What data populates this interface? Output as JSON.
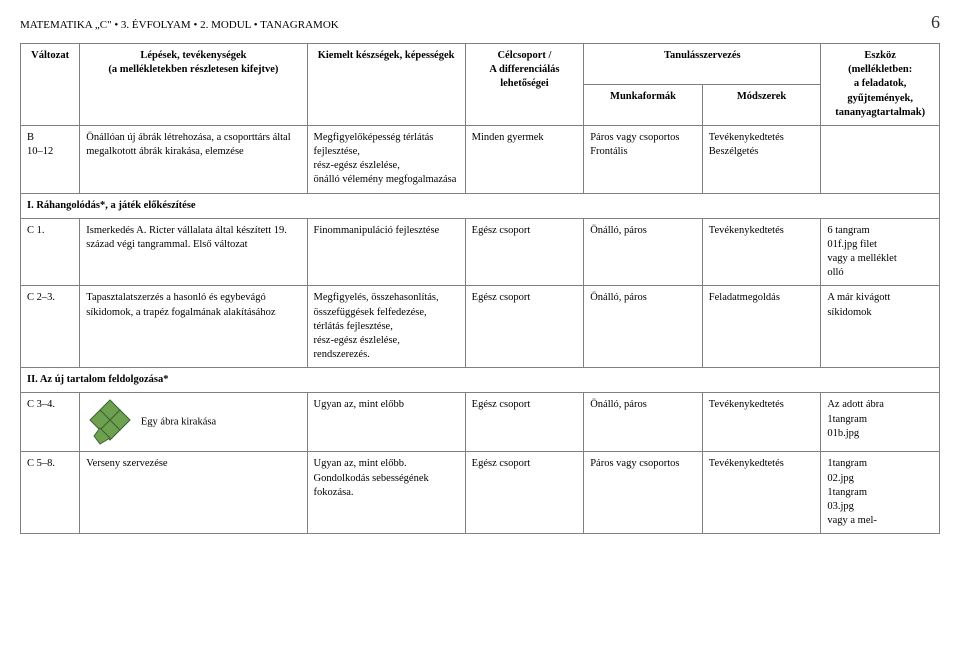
{
  "header": {
    "title": "MATEMATIKA „C\" • 3. ÉVFOLYAM • 2. MODUL • TANAGRAMOK",
    "page_number": "6"
  },
  "table": {
    "headers": {
      "variant": "Változat",
      "steps": "Lépések, tevékenységek\n(a mellékletekben részletesen kifejtve)",
      "skills": "Kiemelt készségek, képességek",
      "target": "Célcsoport /\nA differenciálás lehetőségei",
      "org": "Tanulásszervezés",
      "forms": "Munkaformák",
      "methods": "Módszerek",
      "tools": "Eszköz\n(mellékletben:\na feladatok,\ngyűjtemények,\ntananyagtartalmak)"
    },
    "rows": [
      {
        "id": "b10-12",
        "variant": "B\n10–12",
        "steps": "Önállóan új ábrák létrehozása, a csoporttárs által megalkotott ábrák kirakása, elemzése",
        "skills": "Megfigyelőképesség térlátás fejlesztése,\nrész-egész észlelése,\nönálló vélemény megfogalmazása",
        "target": "Minden gyermek",
        "forms": "Páros vagy csoportos\nFrontális",
        "methods": "Tevékenykedtetés\nBeszélgetés",
        "tools": ""
      },
      {
        "id": "section-1",
        "section": "I. Ráhangolódás*, a játék előkészítése"
      },
      {
        "id": "c1",
        "variant": "C 1.",
        "steps": "Ismerkedés A. Ricter vállalata által készített 19. század végi tangrammal. Első változat",
        "skills": "Finommanipuláció fejlesztése",
        "target": "Egész csoport",
        "forms": "Önálló, páros",
        "methods": "Tevékenykedtetés",
        "tools": "6 tangram\n01f.jpg filet\nvagy a melléklet\nolló"
      },
      {
        "id": "c2-3",
        "variant": "C 2–3.",
        "steps": "Tapasztalatszerzés a hasonló és egybevágó síkidomok, a trapéz fogalmának alakításához",
        "skills": "Megfigyelés, összehasonlítás, összefüggések felfedezése,\ntérlátás fejlesztése,\nrész-egész észlelése,\nrendszerezés.",
        "target": "Egész csoport",
        "forms": "Önálló, páros",
        "methods": "Feladatmegoldás",
        "tools": "A már kivágott síkidomok"
      },
      {
        "id": "section-2",
        "section": "II. Az új tartalom feldolgozása*"
      },
      {
        "id": "c3-4",
        "variant": "C 3–4.",
        "steps_img": true,
        "steps": "Egy ábra kirakása",
        "skills": "Ugyan az, mint előbb",
        "target": "Egész csoport",
        "forms": "Önálló, páros",
        "methods": "Tevékenykedtetés",
        "tools": "Az adott ábra\n1tangram\n01b.jpg"
      },
      {
        "id": "c5-8",
        "variant": "C 5–8.",
        "steps": "Verseny szervezése",
        "skills": "Ugyan az, mint előbb.\nGondolkodás sebességének fokozása.",
        "target": "Egész csoport",
        "forms": "Páros vagy csoportos",
        "methods": "Tevékenykedtetés",
        "tools": "1tangram\n02.jpg\n1tangram\n03.jpg\nvagy a mel-"
      }
    ],
    "tangram": {
      "fill": "#6da04f",
      "stroke": "#3d6330"
    }
  }
}
